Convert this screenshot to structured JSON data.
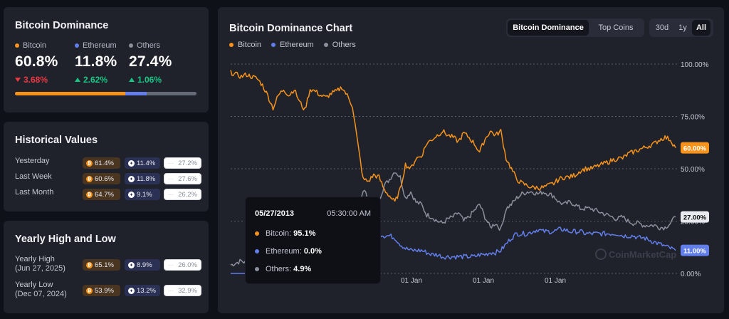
{
  "dominance": {
    "title": "Bitcoin Dominance",
    "items": [
      {
        "name": "Bitcoin",
        "value": "60.8%",
        "change": "3.68%",
        "direction": "down",
        "color": "#f7931a"
      },
      {
        "name": "Ethereum",
        "value": "11.8%",
        "change": "2.62%",
        "direction": "up",
        "color": "#627eea"
      },
      {
        "name": "Others",
        "value": "27.4%",
        "change": "1.06%",
        "direction": "up",
        "color": "#8a8f9c"
      }
    ],
    "bar": [
      60.8,
      11.8,
      27.4
    ]
  },
  "historical": {
    "title": "Historical Values",
    "rows": [
      {
        "label": "Yesterday",
        "btc": "61.4%",
        "eth": "11.4%",
        "others": "27.2%"
      },
      {
        "label": "Last Week",
        "btc": "60.6%",
        "eth": "11.8%",
        "others": "27.6%"
      },
      {
        "label": "Last Month",
        "btc": "64.7%",
        "eth": "9.1%",
        "others": "26.2%"
      }
    ]
  },
  "yearly": {
    "title": "Yearly High and Low",
    "rows": [
      {
        "label": "Yearly High",
        "sublabel": "(Jun 27, 2025)",
        "btc": "65.1%",
        "eth": "8.9%",
        "others": "26.0%"
      },
      {
        "label": "Yearly Low",
        "sublabel": "(Dec 07, 2024)",
        "btc": "53.9%",
        "eth": "13.2%",
        "others": "32.9%"
      }
    ]
  },
  "chart_panel": {
    "title": "Bitcoin Dominance Chart",
    "tabs": [
      "Bitcoin Dominance",
      "Top Coins"
    ],
    "active_tab": "Bitcoin Dominance",
    "ranges": [
      "30d",
      "1y",
      "All"
    ],
    "active_range": "All",
    "watermark": "CoinMarketCap",
    "tooltip": {
      "date": "05/27/2013",
      "time": "05:30:00 AM",
      "rows": [
        {
          "name": "Bitcoin",
          "value": "95.1%",
          "color": "#f7931a"
        },
        {
          "name": "Ethereum",
          "value": "0.0%",
          "color": "#627eea"
        },
        {
          "name": "Others",
          "value": "4.9%",
          "color": "#8a8f9c"
        }
      ]
    }
  },
  "chart_data": {
    "type": "line",
    "x_ticks": [
      "01 Jan",
      "01 Jan",
      "01 Jan"
    ],
    "y_ticks": [
      "100.00%",
      "75.00%",
      "50.00%",
      "25.00%",
      "0.00%"
    ],
    "ylim": [
      0,
      100
    ],
    "grid": true,
    "legend_position": "top-left",
    "end_labels": [
      "60.00%",
      "27.00%",
      "11.00%"
    ],
    "series": [
      {
        "name": "Bitcoin",
        "color": "#f7931a",
        "values": [
          96,
          95,
          94,
          95,
          94,
          93,
          90,
          85,
          79,
          85,
          88,
          85,
          88,
          82,
          78,
          88,
          87,
          85,
          84,
          86,
          87,
          89,
          85,
          80,
          62,
          45,
          44,
          47,
          46,
          40,
          37,
          34,
          40,
          52,
          50,
          55,
          56,
          62,
          64,
          66,
          68,
          66,
          65,
          63,
          67,
          65,
          62,
          58,
          64,
          68,
          66,
          68,
          55,
          50,
          45,
          43,
          42,
          41,
          41,
          41,
          42,
          43,
          45,
          46,
          46,
          47,
          49,
          50,
          50,
          51,
          52,
          53,
          54,
          55,
          55,
          57,
          58,
          59,
          60,
          61,
          62,
          64,
          65,
          64,
          60
        ]
      },
      {
        "name": "Ethereum",
        "color": "#627eea",
        "values": [
          0,
          0,
          0,
          0,
          0,
          0,
          0,
          0,
          0,
          0,
          0,
          0,
          0,
          0,
          0,
          0,
          0,
          0,
          0,
          0,
          0,
          0,
          0,
          0,
          10,
          15,
          20,
          20,
          19,
          18,
          18,
          17,
          14,
          12,
          11,
          11,
          11,
          10,
          9,
          9,
          8,
          8,
          8,
          8,
          8,
          8,
          8,
          9,
          9,
          10,
          10,
          11,
          14,
          17,
          19,
          19,
          19,
          20,
          21,
          20,
          20,
          20,
          21,
          21,
          20,
          20,
          20,
          19,
          19,
          19,
          19,
          19,
          19,
          19,
          18,
          18,
          18,
          17,
          17,
          16,
          15,
          14,
          13,
          12,
          11
        ]
      },
      {
        "name": "Others",
        "color": "#8a8f9c",
        "values": [
          4,
          5,
          6,
          5,
          6,
          7,
          10,
          15,
          21,
          15,
          12,
          15,
          12,
          18,
          22,
          12,
          13,
          15,
          16,
          14,
          13,
          11,
          15,
          20,
          28,
          40,
          36,
          33,
          35,
          42,
          45,
          49,
          46,
          36,
          39,
          34,
          33,
          28,
          27,
          25,
          24,
          26,
          27,
          29,
          25,
          27,
          30,
          33,
          27,
          22,
          24,
          21,
          31,
          33,
          36,
          38,
          39,
          39,
          38,
          39,
          38,
          37,
          34,
          33,
          34,
          33,
          31,
          31,
          31,
          30,
          29,
          28,
          27,
          26,
          27,
          25,
          24,
          24,
          23,
          23,
          23,
          22,
          22,
          24,
          27
        ]
      }
    ]
  }
}
